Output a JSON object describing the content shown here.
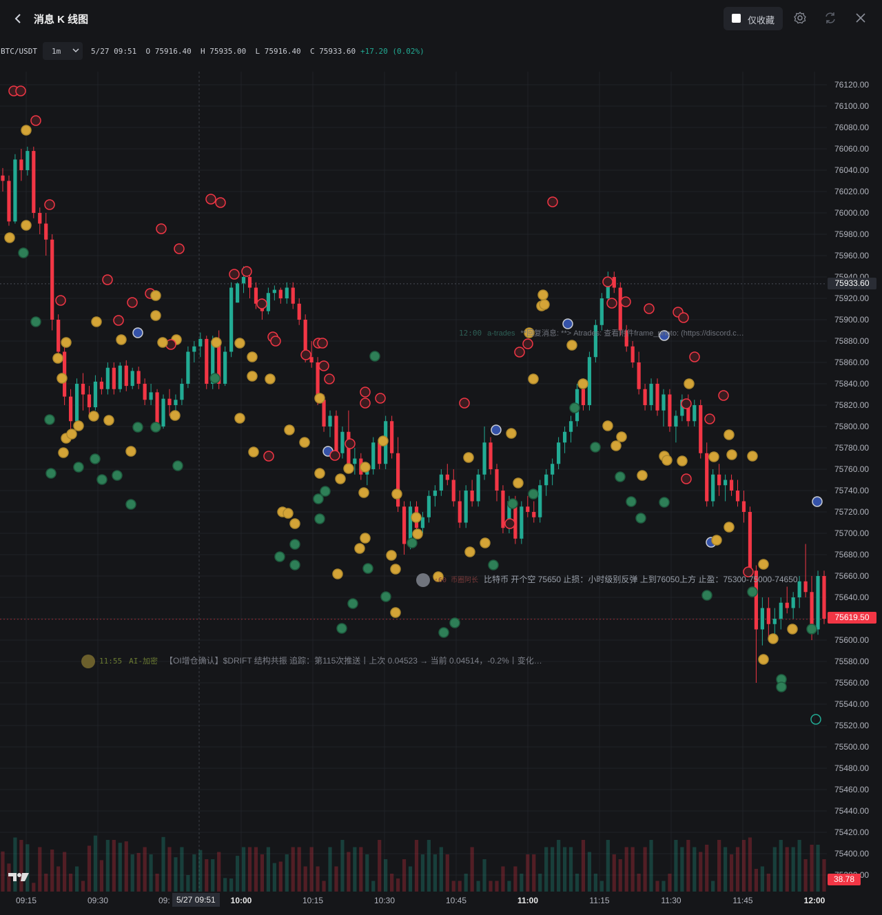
{
  "header": {
    "title": "消息 K 线图",
    "favorites_only_label": "仅收藏",
    "favorites_checked": false
  },
  "info": {
    "symbol": "BTC/USDT",
    "interval": "1m",
    "datetime": "5/27 09:51",
    "o_label": "O",
    "o_value": "75916.40",
    "h_label": "H",
    "h_value": "75935.00",
    "l_label": "L",
    "l_value": "75916.40",
    "c_label": "C",
    "c_value": "75933.60",
    "change": "+17.20 (0.02%)"
  },
  "messages": {
    "a": {
      "time": "11:55",
      "source": "AI-加密",
      "text": "【OI增仓确认】$DRIFT 结构共振 追踪：第115次推送丨上次 0.04523 → 当前 0.04514，-0.2%丨变化…"
    },
    "b": {
      "time": ":60",
      "source": "币圈阿长",
      "text": "比特币 开个空 75650 止损：小时级别反弹 上到76050上方 止盈：75300-75000-74650"
    },
    "c": {
      "time": "12:00",
      "source": "a-trades",
      "text": "**回复消息: **> Atrades: 查看附件frame_photo: (https://discord.c…"
    }
  },
  "crosshair": {
    "time_label": "5/27 09:51",
    "partial_label": "09:"
  },
  "last_price_label": "75933.60",
  "cursor_price_label": "75619.50",
  "volume_label": "38.78",
  "colors": {
    "up": "#22ab94",
    "down": "#f23645",
    "bg": "#151619",
    "grid": "#202228"
  },
  "icons": {
    "back": "chevron-left-icon",
    "settings": "gear-icon",
    "refresh": "refresh-icon",
    "close": "close-icon",
    "logo": "tradingview-logo"
  },
  "chart_data": {
    "type": "candlestick",
    "symbol": "BTC/USDT",
    "interval": "1m",
    "y_ticks": [
      76120,
      76100,
      76080,
      76060,
      76040,
      76020,
      76000,
      75980,
      75960,
      75940,
      75920,
      75900,
      75880,
      75860,
      75840,
      75820,
      75800,
      75780,
      75760,
      75740,
      75720,
      75700,
      75680,
      75660,
      75640,
      75620,
      75600,
      75580,
      75560,
      75540,
      75520,
      75500,
      75480,
      75460,
      75440,
      75420,
      75400,
      75380
    ],
    "x_ticks": [
      "09:15",
      "09:30",
      "10:00",
      "10:15",
      "10:30",
      "10:45",
      "11:00",
      "11:15",
      "11:30",
      "11:45",
      "12:00"
    ],
    "ylim": [
      75370,
      76130
    ],
    "grid": true,
    "candles": [
      {
        "t": "09:13",
        "o": 76035,
        "h": 76042,
        "l": 76020,
        "c": 76030
      },
      {
        "t": "09:14",
        "o": 76030,
        "h": 76035,
        "l": 75988,
        "c": 75992
      },
      {
        "t": "09:15",
        "o": 75992,
        "h": 76055,
        "l": 75990,
        "c": 76050
      },
      {
        "t": "09:16",
        "o": 76050,
        "h": 76060,
        "l": 76030,
        "c": 76040
      },
      {
        "t": "09:17",
        "o": 76040,
        "h": 76062,
        "l": 76035,
        "c": 76058
      },
      {
        "t": "09:18",
        "o": 76058,
        "h": 76062,
        "l": 75995,
        "c": 76000
      },
      {
        "t": "09:19",
        "o": 76000,
        "h": 76005,
        "l": 75980,
        "c": 75990
      },
      {
        "t": "09:20",
        "o": 75990,
        "h": 76000,
        "l": 75960,
        "c": 75975
      },
      {
        "t": "09:21",
        "o": 75975,
        "h": 75980,
        "l": 75890,
        "c": 75900
      },
      {
        "t": "09:22",
        "o": 75900,
        "h": 75905,
        "l": 75860,
        "c": 75870
      },
      {
        "t": "09:23",
        "o": 75870,
        "h": 75875,
        "l": 75820,
        "c": 75828
      },
      {
        "t": "09:24",
        "o": 75828,
        "h": 75835,
        "l": 75795,
        "c": 75805
      },
      {
        "t": "09:25",
        "o": 75805,
        "h": 75845,
        "l": 75800,
        "c": 75840
      },
      {
        "t": "09:26",
        "o": 75840,
        "h": 75850,
        "l": 75815,
        "c": 75830
      },
      {
        "t": "09:27",
        "o": 75830,
        "h": 75838,
        "l": 75812,
        "c": 75818
      },
      {
        "t": "09:28",
        "o": 75818,
        "h": 75848,
        "l": 75815,
        "c": 75842
      },
      {
        "t": "09:29",
        "o": 75842,
        "h": 75846,
        "l": 75830,
        "c": 75835
      },
      {
        "t": "09:30",
        "o": 75835,
        "h": 75860,
        "l": 75830,
        "c": 75855
      },
      {
        "t": "09:31",
        "o": 75855,
        "h": 75860,
        "l": 75830,
        "c": 75835
      },
      {
        "t": "09:32",
        "o": 75835,
        "h": 75860,
        "l": 75832,
        "c": 75857
      },
      {
        "t": "09:33",
        "o": 75857,
        "h": 75862,
        "l": 75833,
        "c": 75838
      },
      {
        "t": "09:34",
        "o": 75838,
        "h": 75855,
        "l": 75835,
        "c": 75852
      },
      {
        "t": "09:35",
        "o": 75852,
        "h": 75856,
        "l": 75835,
        "c": 75840
      },
      {
        "t": "09:36",
        "o": 75840,
        "h": 75845,
        "l": 75820,
        "c": 75825
      },
      {
        "t": "09:37",
        "o": 75825,
        "h": 75840,
        "l": 75820,
        "c": 75832
      },
      {
        "t": "09:38",
        "o": 75832,
        "h": 75835,
        "l": 75795,
        "c": 75800
      },
      {
        "t": "09:39",
        "o": 75800,
        "h": 75830,
        "l": 75798,
        "c": 75826
      },
      {
        "t": "09:40",
        "o": 75826,
        "h": 75835,
        "l": 75810,
        "c": 75820
      },
      {
        "t": "09:41",
        "o": 75820,
        "h": 75830,
        "l": 75812,
        "c": 75825
      },
      {
        "t": "09:42",
        "o": 75825,
        "h": 75845,
        "l": 75820,
        "c": 75840
      },
      {
        "t": "09:43",
        "o": 75840,
        "h": 75875,
        "l": 75836,
        "c": 75870
      },
      {
        "t": "09:44",
        "o": 75870,
        "h": 75880,
        "l": 75860,
        "c": 75875
      },
      {
        "t": "09:45",
        "o": 75875,
        "h": 75888,
        "l": 75865,
        "c": 75882
      },
      {
        "t": "09:46",
        "o": 75882,
        "h": 75885,
        "l": 75835,
        "c": 75840
      },
      {
        "t": "09:47",
        "o": 75840,
        "h": 75885,
        "l": 75835,
        "c": 75880
      },
      {
        "t": "09:48",
        "o": 75880,
        "h": 75890,
        "l": 75835,
        "c": 75840
      },
      {
        "t": "09:49",
        "o": 75840,
        "h": 75875,
        "l": 75838,
        "c": 75870
      },
      {
        "t": "09:50",
        "o": 75870,
        "h": 75935,
        "l": 75865,
        "c": 75930
      },
      {
        "t": "09:51",
        "o": 75916,
        "h": 75935,
        "l": 75916,
        "c": 75934
      },
      {
        "t": "09:52",
        "o": 75934,
        "h": 75950,
        "l": 75925,
        "c": 75940
      },
      {
        "t": "09:53",
        "o": 75940,
        "h": 75945,
        "l": 75920,
        "c": 75930
      },
      {
        "t": "09:54",
        "o": 75930,
        "h": 75935,
        "l": 75910,
        "c": 75915
      },
      {
        "t": "09:55",
        "o": 75915,
        "h": 75920,
        "l": 75900,
        "c": 75908
      },
      {
        "t": "09:56",
        "o": 75908,
        "h": 75930,
        "l": 75905,
        "c": 75925
      },
      {
        "t": "09:57",
        "o": 75925,
        "h": 75932,
        "l": 75918,
        "c": 75928
      },
      {
        "t": "09:58",
        "o": 75928,
        "h": 75930,
        "l": 75915,
        "c": 75920
      },
      {
        "t": "09:59",
        "o": 75920,
        "h": 75935,
        "l": 75915,
        "c": 75930
      },
      {
        "t": "10:00",
        "o": 75930,
        "h": 75935,
        "l": 75910,
        "c": 75915
      },
      {
        "t": "10:01",
        "o": 75915,
        "h": 75920,
        "l": 75895,
        "c": 75900
      },
      {
        "t": "10:02",
        "o": 75900,
        "h": 75905,
        "l": 75860,
        "c": 75865
      },
      {
        "t": "10:03",
        "o": 75865,
        "h": 75880,
        "l": 75855,
        "c": 75860
      },
      {
        "t": "10:04",
        "o": 75860,
        "h": 75865,
        "l": 75820,
        "c": 75825
      },
      {
        "t": "10:05",
        "o": 75825,
        "h": 75830,
        "l": 75795,
        "c": 75800
      },
      {
        "t": "10:06",
        "o": 75800,
        "h": 75815,
        "l": 75790,
        "c": 75810
      },
      {
        "t": "10:07",
        "o": 75810,
        "h": 75815,
        "l": 75770,
        "c": 75775
      },
      {
        "t": "10:08",
        "o": 75775,
        "h": 75800,
        "l": 75770,
        "c": 75795
      },
      {
        "t": "10:09",
        "o": 75795,
        "h": 75815,
        "l": 75760,
        "c": 75765
      },
      {
        "t": "10:10",
        "o": 75765,
        "h": 75780,
        "l": 75755,
        "c": 75770
      },
      {
        "t": "10:11",
        "o": 75770,
        "h": 75775,
        "l": 75750,
        "c": 75755
      },
      {
        "t": "10:12",
        "o": 75755,
        "h": 75765,
        "l": 75745,
        "c": 75760
      },
      {
        "t": "10:13",
        "o": 75760,
        "h": 75790,
        "l": 75755,
        "c": 75785
      },
      {
        "t": "10:14",
        "o": 75785,
        "h": 75790,
        "l": 75760,
        "c": 75765
      },
      {
        "t": "10:15",
        "o": 75765,
        "h": 75810,
        "l": 75760,
        "c": 75805
      },
      {
        "t": "10:16",
        "o": 75805,
        "h": 75810,
        "l": 75770,
        "c": 75775
      },
      {
        "t": "10:17",
        "o": 75775,
        "h": 75790,
        "l": 75720,
        "c": 75725
      },
      {
        "t": "10:18",
        "o": 75725,
        "h": 75730,
        "l": 75680,
        "c": 75690
      },
      {
        "t": "10:19",
        "o": 75690,
        "h": 75730,
        "l": 75685,
        "c": 75725
      },
      {
        "t": "10:20",
        "o": 75725,
        "h": 75730,
        "l": 75700,
        "c": 75705
      },
      {
        "t": "10:21",
        "o": 75705,
        "h": 75720,
        "l": 75700,
        "c": 75715
      },
      {
        "t": "10:22",
        "o": 75715,
        "h": 75740,
        "l": 75710,
        "c": 75735
      },
      {
        "t": "10:23",
        "o": 75735,
        "h": 75745,
        "l": 75725,
        "c": 75740
      },
      {
        "t": "10:24",
        "o": 75740,
        "h": 75760,
        "l": 75735,
        "c": 75755
      },
      {
        "t": "10:25",
        "o": 75755,
        "h": 75765,
        "l": 75745,
        "c": 75750
      },
      {
        "t": "10:26",
        "o": 75750,
        "h": 75760,
        "l": 75725,
        "c": 75730
      },
      {
        "t": "10:27",
        "o": 75730,
        "h": 75740,
        "l": 75705,
        "c": 75710
      },
      {
        "t": "10:28",
        "o": 75710,
        "h": 75745,
        "l": 75705,
        "c": 75740
      },
      {
        "t": "10:29",
        "o": 75740,
        "h": 75750,
        "l": 75725,
        "c": 75730
      },
      {
        "t": "10:30",
        "o": 75730,
        "h": 75760,
        "l": 75725,
        "c": 75755
      },
      {
        "t": "10:31",
        "o": 75755,
        "h": 75800,
        "l": 75750,
        "c": 75785
      },
      {
        "t": "10:32",
        "o": 75785,
        "h": 75790,
        "l": 75755,
        "c": 75760
      },
      {
        "t": "10:33",
        "o": 75760,
        "h": 75765,
        "l": 75730,
        "c": 75740
      },
      {
        "t": "10:34",
        "o": 75740,
        "h": 75745,
        "l": 75700,
        "c": 75705
      },
      {
        "t": "10:35",
        "o": 75705,
        "h": 75735,
        "l": 75700,
        "c": 75730
      },
      {
        "t": "10:36",
        "o": 75730,
        "h": 75735,
        "l": 75690,
        "c": 75695
      },
      {
        "t": "10:37",
        "o": 75695,
        "h": 75730,
        "l": 75690,
        "c": 75725
      },
      {
        "t": "10:38",
        "o": 75725,
        "h": 75735,
        "l": 75715,
        "c": 75720
      },
      {
        "t": "10:39",
        "o": 75720,
        "h": 75730,
        "l": 75710,
        "c": 75715
      },
      {
        "t": "10:40",
        "o": 75715,
        "h": 75750,
        "l": 75710,
        "c": 75745
      },
      {
        "t": "10:41",
        "o": 75745,
        "h": 75760,
        "l": 75735,
        "c": 75755
      },
      {
        "t": "10:42",
        "o": 75755,
        "h": 75770,
        "l": 75745,
        "c": 75765
      },
      {
        "t": "10:43",
        "o": 75765,
        "h": 75790,
        "l": 75760,
        "c": 75785
      },
      {
        "t": "10:44",
        "o": 75785,
        "h": 75800,
        "l": 75775,
        "c": 75795
      },
      {
        "t": "10:45",
        "o": 75795,
        "h": 75810,
        "l": 75785,
        "c": 75805
      },
      {
        "t": "10:46",
        "o": 75805,
        "h": 75840,
        "l": 75800,
        "c": 75835
      },
      {
        "t": "10:47",
        "o": 75835,
        "h": 75845,
        "l": 75815,
        "c": 75820
      },
      {
        "t": "10:48",
        "o": 75820,
        "h": 75870,
        "l": 75815,
        "c": 75865
      },
      {
        "t": "10:49",
        "o": 75865,
        "h": 75900,
        "l": 75860,
        "c": 75895
      },
      {
        "t": "10:50",
        "o": 75895,
        "h": 75925,
        "l": 75890,
        "c": 75920
      },
      {
        "t": "10:51",
        "o": 75920,
        "h": 75945,
        "l": 75915,
        "c": 75940
      },
      {
        "t": "10:52",
        "o": 75940,
        "h": 75945,
        "l": 75925,
        "c": 75930
      },
      {
        "t": "10:53",
        "o": 75930,
        "h": 75935,
        "l": 75885,
        "c": 75890
      },
      {
        "t": "10:54",
        "o": 75890,
        "h": 75895,
        "l": 75870,
        "c": 75875
      },
      {
        "t": "10:55",
        "o": 75875,
        "h": 75880,
        "l": 75855,
        "c": 75860
      },
      {
        "t": "10:56",
        "o": 75860,
        "h": 75870,
        "l": 75830,
        "c": 75835
      },
      {
        "t": "10:57",
        "o": 75835,
        "h": 75840,
        "l": 75815,
        "c": 75820
      },
      {
        "t": "10:58",
        "o": 75820,
        "h": 75845,
        "l": 75815,
        "c": 75840
      },
      {
        "t": "10:59",
        "o": 75840,
        "h": 75845,
        "l": 75810,
        "c": 75815
      },
      {
        "t": "11:00",
        "o": 75815,
        "h": 75835,
        "l": 75800,
        "c": 75830
      },
      {
        "t": "11:01",
        "o": 75830,
        "h": 75835,
        "l": 75795,
        "c": 75800
      },
      {
        "t": "11:02",
        "o": 75800,
        "h": 75815,
        "l": 75785,
        "c": 75810
      },
      {
        "t": "11:03",
        "o": 75810,
        "h": 75830,
        "l": 75805,
        "c": 75825
      },
      {
        "t": "11:04",
        "o": 75825,
        "h": 75830,
        "l": 75800,
        "c": 75805
      },
      {
        "t": "11:05",
        "o": 75805,
        "h": 75825,
        "l": 75800,
        "c": 75820
      },
      {
        "t": "11:06",
        "o": 75820,
        "h": 75825,
        "l": 75770,
        "c": 75775
      },
      {
        "t": "11:07",
        "o": 75775,
        "h": 75785,
        "l": 75725,
        "c": 75730
      },
      {
        "t": "11:08",
        "o": 75730,
        "h": 75760,
        "l": 75725,
        "c": 75755
      },
      {
        "t": "11:09",
        "o": 75755,
        "h": 75765,
        "l": 75735,
        "c": 75745
      },
      {
        "t": "11:10",
        "o": 75745,
        "h": 75755,
        "l": 75730,
        "c": 75750
      },
      {
        "t": "11:11",
        "o": 75750,
        "h": 75755,
        "l": 75735,
        "c": 75740
      },
      {
        "t": "11:12",
        "o": 75740,
        "h": 75750,
        "l": 75725,
        "c": 75730
      },
      {
        "t": "11:13",
        "o": 75730,
        "h": 75740,
        "l": 75710,
        "c": 75720
      },
      {
        "t": "11:14",
        "o": 75720,
        "h": 75725,
        "l": 75660,
        "c": 75665
      },
      {
        "t": "11:15",
        "o": 75665,
        "h": 75670,
        "l": 75560,
        "c": 75610
      },
      {
        "t": "11:16",
        "o": 75610,
        "h": 75640,
        "l": 75595,
        "c": 75630
      },
      {
        "t": "11:17",
        "o": 75630,
        "h": 75640,
        "l": 75600,
        "c": 75615
      },
      {
        "t": "11:18",
        "o": 75615,
        "h": 75630,
        "l": 75605,
        "c": 75620
      },
      {
        "t": "11:19",
        "o": 75620,
        "h": 75640,
        "l": 75610,
        "c": 75635
      },
      {
        "t": "11:20",
        "o": 75635,
        "h": 75650,
        "l": 75625,
        "c": 75630
      },
      {
        "t": "11:21",
        "o": 75630,
        "h": 75645,
        "l": 75620,
        "c": 75640
      },
      {
        "t": "11:22",
        "o": 75640,
        "h": 75660,
        "l": 75630,
        "c": 75655
      },
      {
        "t": "11:23",
        "o": 75655,
        "h": 75690,
        "l": 75640,
        "c": 75645
      },
      {
        "t": "11:24",
        "o": 75645,
        "h": 75660,
        "l": 75600,
        "c": 75610
      },
      {
        "t": "11:25",
        "o": 75610,
        "h": 75665,
        "l": 75605,
        "c": 75660
      },
      {
        "t": "11:26",
        "o": 75660,
        "h": 75665,
        "l": 75615,
        "c": 75620
      }
    ]
  }
}
